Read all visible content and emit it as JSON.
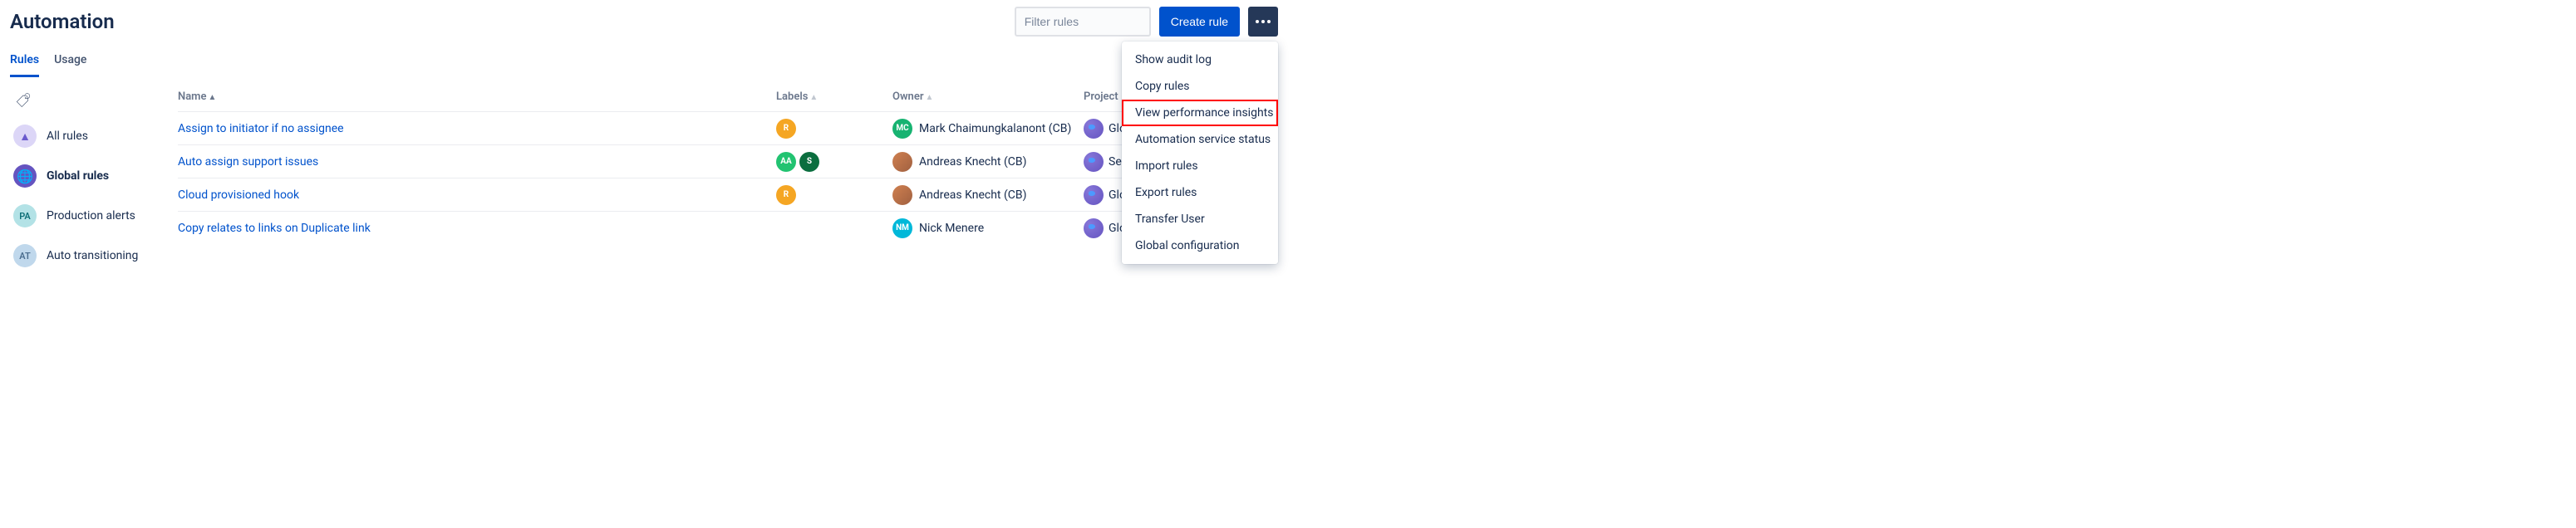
{
  "header": {
    "title": "Automation",
    "filter_placeholder": "Filter rules",
    "create_label": "Create rule"
  },
  "tabs": [
    {
      "label": "Rules",
      "active": true
    },
    {
      "label": "Usage",
      "active": false
    }
  ],
  "sidebar": {
    "items": [
      {
        "label": "All rules",
        "avatar_text": "▲",
        "avatar_class": "av-allrules",
        "active": false
      },
      {
        "label": "Global rules",
        "avatar_text": "🌐",
        "avatar_class": "av-global",
        "active": true
      },
      {
        "label": "Production alerts",
        "avatar_text": "PA",
        "avatar_class": "av-pa",
        "active": false
      },
      {
        "label": "Auto transitioning",
        "avatar_text": "AT",
        "avatar_class": "av-at",
        "active": false
      }
    ]
  },
  "columns": {
    "name": "Name",
    "labels": "Labels",
    "owner": "Owner",
    "project": "Project"
  },
  "rules": [
    {
      "name": "Assign to initiator if no assignee",
      "labels": [
        {
          "text": "R",
          "cls": "chip-r"
        }
      ],
      "owner": {
        "name": "Mark Chaimungkalanont (CB)",
        "avatar_text": "MC",
        "avatar_cls": "av-mc"
      },
      "project": "Global"
    },
    {
      "name": "Auto assign support issues",
      "labels": [
        {
          "text": "AA",
          "cls": "chip-aa"
        },
        {
          "text": "S",
          "cls": "chip-s"
        }
      ],
      "owner": {
        "name": "Andreas Knecht (CB)",
        "avatar_text": "",
        "avatar_cls": "av-ak"
      },
      "project": "Service"
    },
    {
      "name": "Cloud provisioned hook",
      "labels": [
        {
          "text": "R",
          "cls": "chip-r"
        }
      ],
      "owner": {
        "name": "Andreas Knecht (CB)",
        "avatar_text": "",
        "avatar_cls": "av-ak"
      },
      "project": "Global"
    },
    {
      "name": "Copy relates to links on Duplicate link",
      "labels": [],
      "owner": {
        "name": "Nick Menere",
        "avatar_text": "NM",
        "avatar_cls": "av-nm"
      },
      "project": "Global"
    }
  ],
  "dropdown": {
    "items": [
      {
        "label": "Show audit log",
        "highlight": false
      },
      {
        "label": "Copy rules",
        "highlight": false
      },
      {
        "label": "View performance insights",
        "highlight": true
      },
      {
        "label": "Automation service status",
        "highlight": false
      },
      {
        "label": "Import rules",
        "highlight": false
      },
      {
        "label": "Export rules",
        "highlight": false
      },
      {
        "label": "Transfer User",
        "highlight": false
      },
      {
        "label": "Global configuration",
        "highlight": false
      }
    ]
  },
  "colors": {
    "link": "#0052cc",
    "primary_button": "#0052cc",
    "highlight_border": "#ff0000"
  }
}
